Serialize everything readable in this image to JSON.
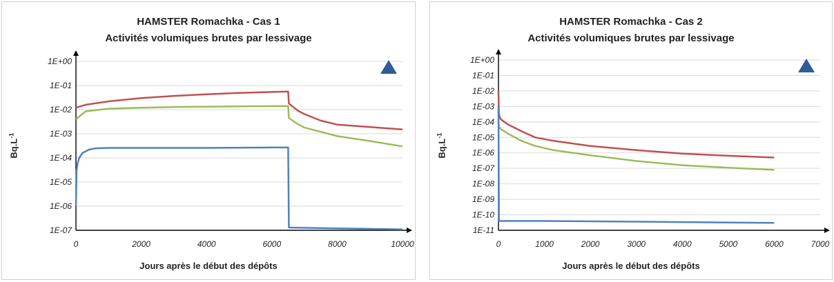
{
  "chart_data": [
    {
      "type": "line",
      "title_line1": "HAMSTER Romachka - Cas 1",
      "title_line2": "Activités volumiques brutes par lessivage",
      "xlabel": "Jours après le début des dépôts",
      "ylabel": "Bq.L",
      "ylabel_exp": "-1",
      "y_scale": "log",
      "ylim": [
        1e-07,
        1
      ],
      "xlim": [
        0,
        10000
      ],
      "x_ticks": [
        "0",
        "2000",
        "4000",
        "6000",
        "8000",
        "10000"
      ],
      "y_ticks": [
        "1E-07",
        "1E-06",
        "1E-05",
        "1E-04",
        "1E-03",
        "1E-02",
        "1E-01",
        "1E+00"
      ],
      "grid": "horizontal",
      "marker": {
        "shape": "triangle",
        "color": "#2e5c96",
        "position": "top-right"
      },
      "series": [
        {
          "color": "#c0504d",
          "x": [
            0,
            300,
            1000,
            2000,
            3000,
            4000,
            5000,
            6000,
            6500,
            6520,
            6800,
            7000,
            7500,
            8000,
            9000,
            10000
          ],
          "y": [
            0.012,
            0.016,
            0.022,
            0.03,
            0.037,
            0.043,
            0.049,
            0.054,
            0.056,
            0.018,
            0.009,
            0.0065,
            0.0035,
            0.0024,
            0.0019,
            0.0015
          ]
        },
        {
          "color": "#9bbb59",
          "x": [
            0,
            300,
            1000,
            2000,
            3000,
            4000,
            5000,
            6000,
            6500,
            6520,
            6800,
            7000,
            7500,
            8000,
            9000,
            10000
          ],
          "y": [
            0.004,
            0.0085,
            0.011,
            0.012,
            0.0128,
            0.0133,
            0.0137,
            0.014,
            0.014,
            0.0045,
            0.0025,
            0.0018,
            0.0012,
            0.0008,
            0.0005,
            0.0003
          ]
        },
        {
          "color": "#4f81bd",
          "x": [
            0,
            20,
            50,
            100,
            200,
            400,
            600,
            1000,
            2000,
            4000,
            6000,
            6500,
            6520,
            8000,
            10000
          ],
          "y": [
            1e-06,
            3e-05,
            6e-05,
            0.0001,
            0.00016,
            0.00022,
            0.00025,
            0.00026,
            0.00026,
            0.00026,
            0.00027,
            0.00027,
            1.3e-07,
            1.2e-07,
            1.1e-07
          ]
        }
      ]
    },
    {
      "type": "line",
      "title_line1": "HAMSTER Romachka - Cas 2",
      "title_line2": "Activités volumiques brutes par lessivage",
      "xlabel": "Jours après le début des dépôts",
      "ylabel": "Bq.L",
      "ylabel_exp": "-1",
      "y_scale": "log",
      "ylim": [
        1e-11,
        1
      ],
      "xlim": [
        0,
        7000
      ],
      "x_ticks": [
        "0",
        "1000",
        "2000",
        "3000",
        "4000",
        "5000",
        "6000",
        "7000"
      ],
      "y_ticks": [
        "1E-11",
        "1E-10",
        "1E-09",
        "1E-08",
        "1E-07",
        "1E-06",
        "1E-05",
        "1E-04",
        "1E-03",
        "1E-02",
        "1E-01",
        "1E+00"
      ],
      "grid": "horizontal",
      "marker": {
        "shape": "triangle",
        "color": "#2e5c96",
        "position": "top-right"
      },
      "series": [
        {
          "color": "#c0504d",
          "x": [
            0,
            10,
            50,
            200,
            500,
            800,
            1200,
            2000,
            3000,
            4000,
            5000,
            6000
          ],
          "y": [
            0.01,
            0.0003,
            0.00015,
            7e-05,
            2.5e-05,
            1e-05,
            6e-06,
            2.8e-06,
            1.5e-06,
            9e-07,
            6.5e-07,
            5e-07
          ]
        },
        {
          "color": "#9bbb59",
          "x": [
            0,
            10,
            50,
            200,
            500,
            800,
            1200,
            2000,
            3000,
            4000,
            5000,
            6000
          ],
          "y": [
            0.0001,
            5e-05,
            3.5e-05,
            1.8e-05,
            6e-06,
            2.8e-06,
            1.5e-06,
            7e-07,
            3e-07,
            1.6e-07,
            1.1e-07,
            8e-08
          ]
        },
        {
          "color": "#4f81bd",
          "x": [
            0,
            5,
            10,
            50,
            1000,
            2000,
            3000,
            4000,
            5000,
            6000
          ],
          "y": [
            0.001,
            1e-06,
            4e-11,
            4e-11,
            4e-11,
            3.8e-11,
            3.6e-11,
            3.4e-11,
            3.2e-11,
            3e-11
          ]
        }
      ]
    }
  ]
}
